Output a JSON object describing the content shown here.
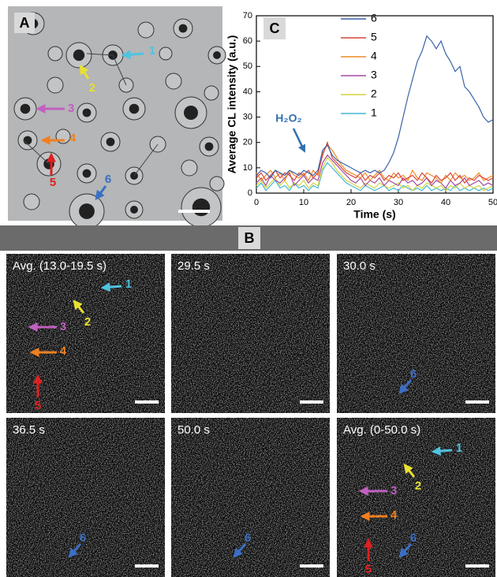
{
  "panel_a": {
    "label": "A",
    "arrow_labels": [
      "1",
      "2",
      "3",
      "4",
      "5",
      "6"
    ]
  },
  "panel_b": {
    "label": "B",
    "tiles": [
      {
        "time": "Avg. (13.0-19.5 s)",
        "arrow_labels": [
          "1",
          "2",
          "3",
          "4",
          "5"
        ]
      },
      {
        "time": "29.5 s"
      },
      {
        "time": "30.0 s",
        "arrow_labels": [
          "6"
        ]
      },
      {
        "time": "36.5 s",
        "arrow_labels": [
          "6"
        ]
      },
      {
        "time": "50.0 s",
        "arrow_labels": [
          "6"
        ]
      },
      {
        "time": "Avg. (0-50.0 s)",
        "arrow_labels": [
          "1",
          "2",
          "3",
          "4",
          "5",
          "6"
        ]
      }
    ]
  },
  "chart_data": {
    "type": "line",
    "panel_label": "C",
    "x_label": "Time (s)",
    "y_label": "Average CL intensity (a.u.)",
    "annotation": "H₂O₂",
    "xlim": [
      0,
      50
    ],
    "xticks": [
      0,
      10,
      20,
      30,
      40,
      50
    ],
    "ylim": [
      0,
      70
    ],
    "yticks": [
      0,
      10,
      20,
      30,
      40,
      50,
      60,
      70
    ],
    "grid": false,
    "x": [
      0,
      1,
      2,
      3,
      4,
      5,
      6,
      7,
      8,
      9,
      10,
      11,
      12,
      13,
      14,
      15,
      16,
      17,
      18,
      19,
      20,
      21,
      22,
      23,
      24,
      25,
      26,
      27,
      28,
      29,
      30,
      31,
      32,
      33,
      34,
      35,
      36,
      37,
      38,
      39,
      40,
      41,
      42,
      43,
      44,
      45,
      46,
      47,
      48,
      49,
      50
    ],
    "series": [
      {
        "name": "6",
        "color": "#3b62a8",
        "values": [
          7,
          9,
          8,
          6,
          9,
          8,
          7,
          9,
          8,
          7,
          9,
          8,
          7,
          9,
          17,
          19,
          15,
          13,
          12,
          11,
          10,
          9,
          8,
          9,
          8,
          9,
          8,
          9,
          12,
          16,
          22,
          30,
          38,
          45,
          52,
          56,
          62,
          60,
          57,
          60,
          55,
          52,
          48,
          50,
          42,
          40,
          37,
          34,
          30,
          28,
          29
        ]
      },
      {
        "name": "5",
        "color": "#d9453a",
        "values": [
          6,
          8,
          5,
          7,
          9,
          6,
          8,
          7,
          5,
          8,
          7,
          9,
          6,
          8,
          15,
          20,
          14,
          12,
          10,
          8,
          7,
          6,
          8,
          5,
          7,
          6,
          8,
          5,
          7,
          6,
          8,
          5,
          6,
          7,
          5,
          8,
          6,
          4,
          7,
          5,
          6,
          8,
          5,
          7,
          4,
          6,
          5,
          7,
          6,
          5,
          6
        ]
      },
      {
        "name": "4",
        "color": "#f08a24",
        "values": [
          8,
          5,
          7,
          9,
          6,
          8,
          5,
          9,
          7,
          6,
          8,
          5,
          9,
          7,
          16,
          19,
          17,
          14,
          11,
          9,
          8,
          7,
          6,
          8,
          5,
          7,
          9,
          6,
          5,
          8,
          6,
          7,
          5,
          9,
          6,
          5,
          8,
          7,
          6,
          4,
          7,
          5,
          8,
          6,
          7,
          5,
          6,
          8,
          5,
          6,
          7
        ]
      },
      {
        "name": "3",
        "color": "#a04aa0",
        "values": [
          4,
          6,
          3,
          7,
          5,
          4,
          6,
          8,
          3,
          5,
          7,
          4,
          6,
          5,
          12,
          15,
          13,
          11,
          9,
          7,
          5,
          4,
          6,
          3,
          5,
          4,
          6,
          3,
          5,
          4,
          3,
          6,
          4,
          5,
          3,
          4,
          6,
          3,
          5,
          4,
          2,
          5,
          3,
          4,
          6,
          3,
          4,
          5,
          3,
          4,
          3
        ]
      },
      {
        "name": "2",
        "color": "#d4d43a",
        "values": [
          3,
          5,
          2,
          4,
          6,
          3,
          5,
          2,
          4,
          3,
          5,
          2,
          4,
          3,
          10,
          14,
          12,
          9,
          7,
          5,
          4,
          3,
          2,
          4,
          3,
          2,
          4,
          3,
          2,
          3,
          4,
          2,
          3,
          1,
          3,
          2,
          4,
          3,
          2,
          3,
          1,
          3,
          2,
          4,
          2,
          3,
          2,
          3,
          1,
          2,
          3
        ]
      },
      {
        "name": "1",
        "color": "#45b9d6",
        "values": [
          2,
          4,
          1,
          3,
          5,
          2,
          3,
          1,
          4,
          2,
          3,
          1,
          3,
          2,
          9,
          12,
          10,
          8,
          6,
          4,
          3,
          2,
          1,
          3,
          2,
          1,
          2,
          3,
          1,
          2,
          1,
          3,
          2,
          1,
          2,
          1,
          3,
          1,
          2,
          1,
          2,
          1,
          3,
          1,
          2,
          1,
          2,
          1,
          2,
          1,
          2
        ]
      }
    ]
  }
}
